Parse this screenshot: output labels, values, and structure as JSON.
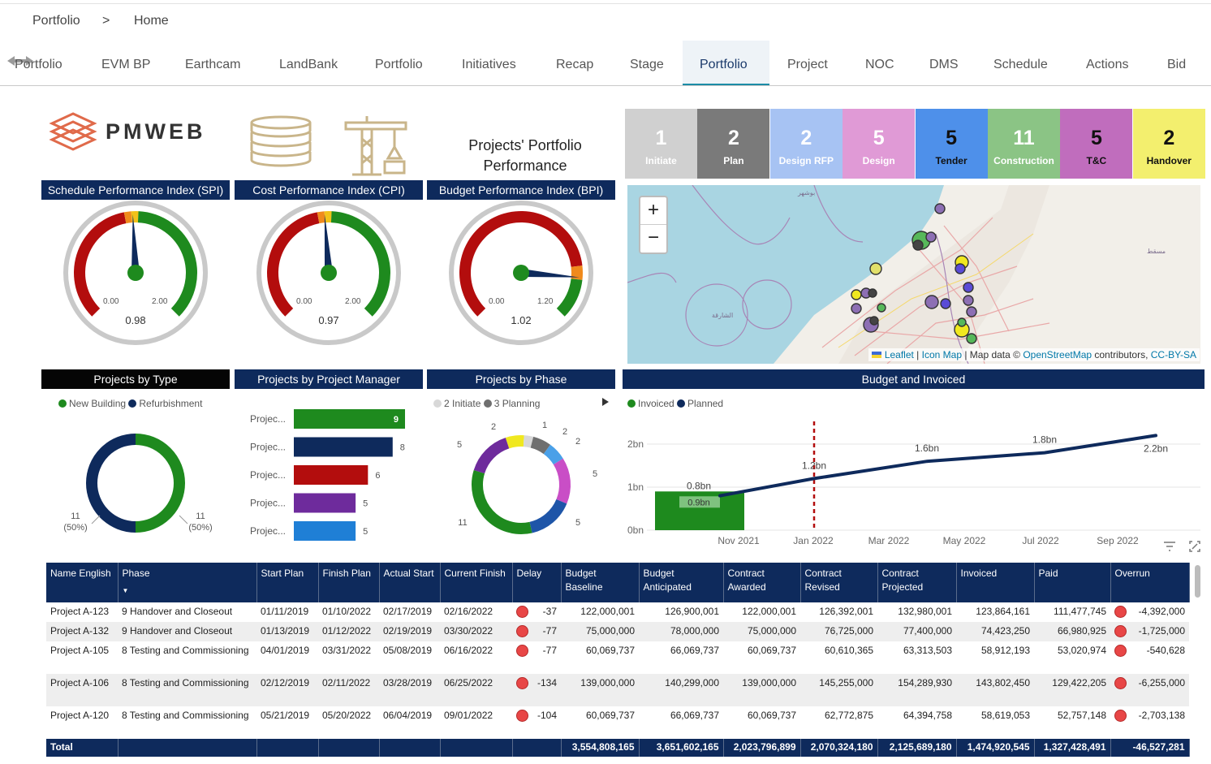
{
  "breadcrumb": {
    "root": "Portfolio",
    "sep": ">",
    "current": "Home"
  },
  "tabs": [
    "Portfolio",
    "EVM BP",
    "Earthcam",
    "LandBank",
    "Portfolio",
    "Initiatives",
    "Recap",
    "Stage",
    "Portfolio",
    "Project",
    "NOC",
    "DMS",
    "Schedule",
    "Actions",
    "Bid"
  ],
  "active_tab_index": 8,
  "logo_text": "PMWEB",
  "title_lines": [
    "Projects' Portfolio",
    "Performance"
  ],
  "stages": [
    {
      "count": "1",
      "label": "Initiate",
      "bg": "#d0d0d0",
      "fg": "#ffffff"
    },
    {
      "count": "2",
      "label": "Plan",
      "bg": "#7a7a7a",
      "fg": "#ffffff"
    },
    {
      "count": "2",
      "label": "Design RFP",
      "bg": "#a7c3f3",
      "fg": "#ffffff"
    },
    {
      "count": "5",
      "label": "Design",
      "bg": "#e09ad6",
      "fg": "#ffffff"
    },
    {
      "count": "5",
      "label": "Tender",
      "bg": "#4e90ea",
      "fg": "#111111"
    },
    {
      "count": "11",
      "label": "Construction",
      "bg": "#8bc485",
      "fg": "#ffffff"
    },
    {
      "count": "5",
      "label": "T&C",
      "bg": "#c06dbd",
      "fg": "#111111"
    },
    {
      "count": "2",
      "label": "Handover",
      "bg": "#f3ef6e",
      "fg": "#111111"
    }
  ],
  "gauges": [
    {
      "title": "Schedule Performance Index (SPI)",
      "min": "0.00",
      "max": "2.00",
      "value": 0.98,
      "value_label": "0.98",
      "range": [
        0,
        2
      ]
    },
    {
      "title": "Cost Performance Index (CPI)",
      "min": "0.00",
      "max": "2.00",
      "value": 0.97,
      "value_label": "0.97",
      "range": [
        0,
        2
      ]
    },
    {
      "title": "Budget Performance Index (BPI)",
      "min": "0.00",
      "max": "1.20",
      "value": 1.02,
      "value_label": "1.02",
      "range": [
        0,
        1.2
      ]
    }
  ],
  "map": {
    "zoom_in": "+",
    "zoom_out": "−",
    "attr_leaflet": "Leaflet",
    "attr_sep1": " | ",
    "attr_icon": "Icon Map",
    "attr_mid": " | Map data © ",
    "attr_osm": "OpenStreetMap",
    "attr_contrib": " contributors, ",
    "attr_cc": "CC-BY-SA"
  },
  "panels": {
    "type": "Projects by Type",
    "pm": "Projects by Project Manager",
    "phase": "Projects by Phase",
    "budget": "Budget and Invoiced"
  },
  "chart_data": [
    {
      "type": "pie",
      "title": "Projects by Type",
      "legend_position": "top-left",
      "series": [
        {
          "name": "New Building",
          "value": 11,
          "label": "11\n(50%)",
          "color": "#1e8a1e"
        },
        {
          "name": "Refurbishment",
          "value": 11,
          "label": "11\n(50%)",
          "color": "#0e2a5c"
        }
      ],
      "label_left": [
        "11",
        "(50%)"
      ],
      "label_right": [
        "11",
        "(50%)"
      ]
    },
    {
      "type": "bar",
      "title": "Projects by Project Manager",
      "categories": [
        "Projec...",
        "Projec...",
        "Projec...",
        "Projec...",
        "Projec..."
      ],
      "values": [
        9,
        8,
        6,
        5,
        5
      ],
      "colors": [
        "#1e8a1e",
        "#0e2a5c",
        "#b30d0d",
        "#6e2b9c",
        "#1f7fd6"
      ],
      "xlim": [
        0,
        9
      ]
    },
    {
      "type": "pie",
      "title": "Projects by Phase",
      "legend": [
        {
          "name": "2 Initiate",
          "color": "#d8d8d8"
        },
        {
          "name": "3 Planning",
          "color": "#6f6f6f"
        }
      ],
      "slices": [
        {
          "value": 2,
          "color": "#f0e81f"
        },
        {
          "value": 1,
          "color": "#d8d8d8"
        },
        {
          "value": 2,
          "color": "#6f6f6f"
        },
        {
          "value": 2,
          "color": "#4aa0e8"
        },
        {
          "value": 5,
          "color": "#c94ec6"
        },
        {
          "value": 5,
          "color": "#1e55a8"
        },
        {
          "value": 11,
          "color": "#1e8a1e"
        },
        {
          "value": 5,
          "color": "#6e2b9c"
        }
      ],
      "labels": [
        "2",
        "1",
        "2",
        "2",
        "5",
        "5",
        "11",
        "5"
      ]
    },
    {
      "type": "line",
      "title": "Budget and Invoiced",
      "legend": [
        {
          "name": "Invoiced",
          "color": "#1e8a1e"
        },
        {
          "name": "Planned",
          "color": "#0e2a5c"
        }
      ],
      "x_ticks": [
        "Nov 2021",
        "Jan 2022",
        "Mar 2022",
        "May 2022",
        "Jul 2022",
        "Sep 2022"
      ],
      "y_ticks": [
        "0bn",
        "1bn",
        "2bn"
      ],
      "ylim": [
        0,
        2.4
      ],
      "planned": {
        "x": [
          "Oct 2021",
          "Jan 2022",
          "Apr 2022",
          "Jul 2022",
          "Oct 2022"
        ],
        "values": [
          0.8,
          1.2,
          1.6,
          1.8,
          2.2
        ],
        "labels": [
          "0.8bn",
          "1.2bn",
          "1.6bn",
          "1.8bn",
          "2.2bn"
        ]
      },
      "invoiced": {
        "x": [
          "Oct 2021"
        ],
        "values": [
          0.9
        ],
        "labels": [
          "0.9bn"
        ]
      },
      "marker": "Jan 2022"
    }
  ],
  "table": {
    "headers": [
      "Name English",
      "Phase",
      "Start Plan",
      "Finish Plan",
      "Actual Start",
      "Current Finish",
      "Delay",
      "Budget Baseline",
      "Budget Anticipated",
      "Contract Awarded",
      "Contract Revised",
      "Contract Projected",
      "Invoiced",
      "Paid",
      "Overrun"
    ],
    "rows": [
      [
        "Project A-123",
        "9 Handover and Closeout",
        "01/11/2019",
        "01/10/2022",
        "02/17/2019",
        "02/16/2022",
        "-37",
        "122,000,001",
        "126,900,001",
        "122,000,001",
        "126,392,001",
        "132,980,001",
        "123,864,161",
        "111,477,745",
        "-4,392,000"
      ],
      [
        "Project A-132",
        "9 Handover and Closeout",
        "01/13/2019",
        "01/12/2022",
        "02/19/2019",
        "03/30/2022",
        "-77",
        "75,000,000",
        "78,000,000",
        "75,000,000",
        "76,725,000",
        "77,400,000",
        "74,423,250",
        "66,980,925",
        "-1,725,000"
      ],
      [
        "Project A-105",
        "8 Testing and Commissioning",
        "04/01/2019",
        "03/31/2022",
        "05/08/2019",
        "06/16/2022",
        "-77",
        "60,069,737",
        "66,069,737",
        "60,069,737",
        "60,610,365",
        "63,313,503",
        "58,912,193",
        "53,020,974",
        "-540,628"
      ],
      [
        "Project A-106",
        "8 Testing and Commissioning",
        "02/12/2019",
        "02/11/2022",
        "03/28/2019",
        "06/25/2022",
        "-134",
        "139,000,000",
        "140,299,000",
        "139,000,000",
        "145,255,000",
        "154,289,930",
        "143,802,450",
        "129,422,205",
        "-6,255,000"
      ],
      [
        "Project A-120",
        "8 Testing and Commissioning",
        "05/21/2019",
        "05/20/2022",
        "06/04/2019",
        "09/01/2022",
        "-104",
        "60,069,737",
        "66,069,737",
        "60,069,737",
        "62,772,875",
        "64,394,758",
        "58,619,053",
        "52,757,148",
        "-2,703,138"
      ]
    ],
    "total": {
      "label": "Total",
      "values": [
        "3,554,808,165",
        "3,651,602,165",
        "2,023,796,899",
        "2,070,324,180",
        "2,125,689,180",
        "1,474,920,545",
        "1,327,428,491",
        "-46,527,281"
      ]
    }
  }
}
